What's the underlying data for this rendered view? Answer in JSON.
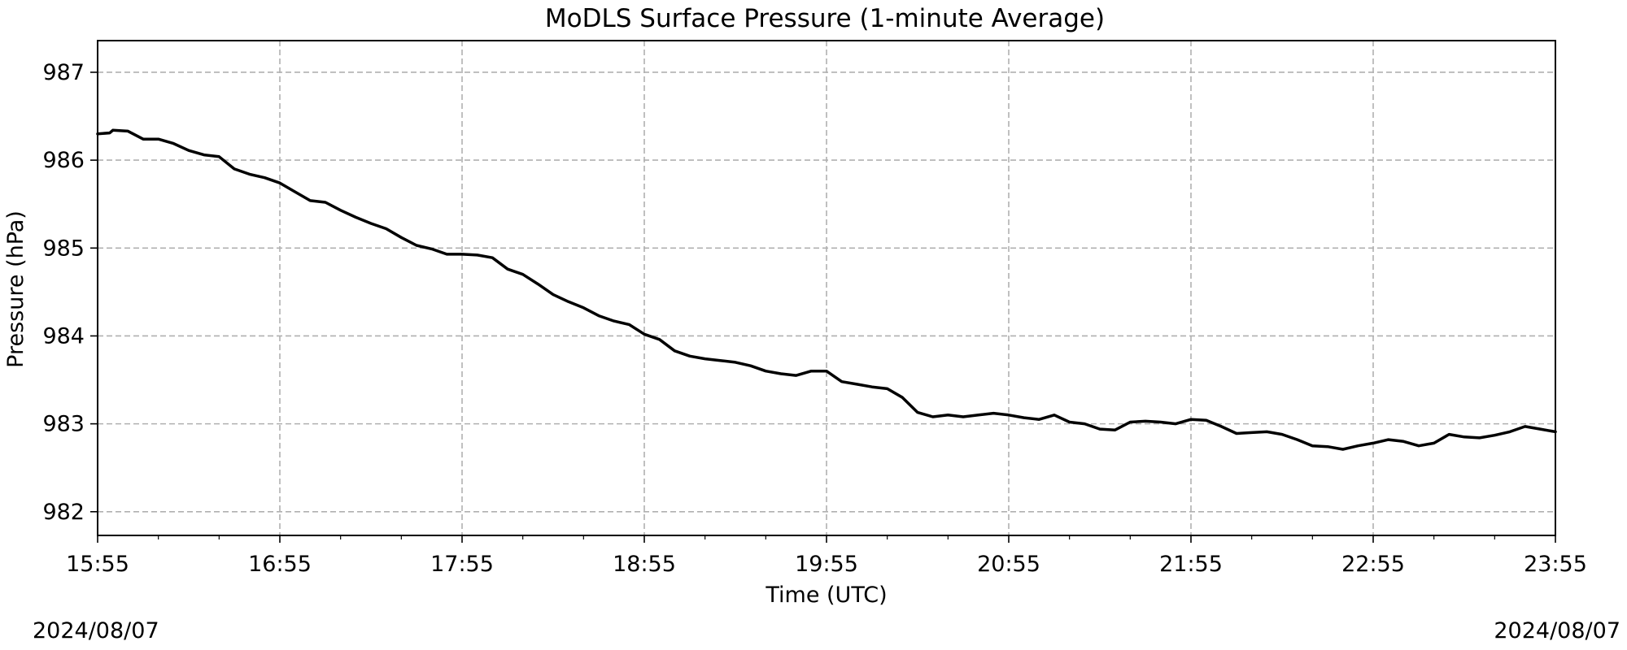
{
  "chart_data": {
    "type": "line",
    "title": "MoDLS Surface Pressure (1-minute Average)",
    "xlabel": "Time (UTC)",
    "ylabel": "Pressure (hPa)",
    "xlim": [
      "15:55",
      "23:55"
    ],
    "ylim": [
      981.73,
      987.36
    ],
    "x_ticks": [
      "15:55",
      "16:55",
      "17:55",
      "18:55",
      "19:55",
      "20:55",
      "21:55",
      "22:55",
      "23:55"
    ],
    "y_ticks": [
      982,
      983,
      984,
      985,
      986,
      987
    ],
    "grid": true,
    "date_left": "2024/08/07",
    "date_right": "2024/08/07",
    "line_color": "#000000",
    "series": [
      {
        "x": [
          "15:55",
          "15:59",
          "16:00",
          "16:05",
          "16:10",
          "16:15",
          "16:20",
          "16:25",
          "16:30",
          "16:35",
          "16:40",
          "16:45",
          "16:50",
          "16:55",
          "17:00",
          "17:05",
          "17:10",
          "17:15",
          "17:20",
          "17:25",
          "17:30",
          "17:35",
          "17:40",
          "17:45",
          "17:50",
          "17:55",
          "18:00",
          "18:05",
          "18:10",
          "18:15",
          "18:20",
          "18:25",
          "18:30",
          "18:35",
          "18:40",
          "18:45",
          "18:50",
          "18:55",
          "19:00",
          "19:05",
          "19:10",
          "19:15",
          "19:20",
          "19:25",
          "19:30",
          "19:35",
          "19:40",
          "19:45",
          "19:50",
          "19:55",
          "20:00",
          "20:05",
          "20:10",
          "20:15",
          "20:20",
          "20:25",
          "20:30",
          "20:35",
          "20:40",
          "20:45",
          "20:50",
          "20:55",
          "21:00",
          "21:05",
          "21:10",
          "21:15",
          "21:20",
          "21:25",
          "21:30",
          "21:35",
          "21:40",
          "21:45",
          "21:50",
          "21:55",
          "22:00",
          "22:05",
          "22:10",
          "22:15",
          "22:20",
          "22:25",
          "22:30",
          "22:35",
          "22:40",
          "22:45",
          "22:50",
          "22:55",
          "23:00",
          "23:05",
          "23:10",
          "23:15",
          "23:20",
          "23:25",
          "23:30",
          "23:35",
          "23:40",
          "23:45",
          "23:50",
          "23:55"
        ],
        "y": [
          986.3,
          986.31,
          986.34,
          986.33,
          986.24,
          986.24,
          986.19,
          986.11,
          986.06,
          986.04,
          985.9,
          985.84,
          985.8,
          985.74,
          985.64,
          985.54,
          985.52,
          985.43,
          985.35,
          985.28,
          985.22,
          985.12,
          985.03,
          984.99,
          984.93,
          984.93,
          984.92,
          984.89,
          984.76,
          984.7,
          984.59,
          984.47,
          984.39,
          984.32,
          984.23,
          984.17,
          984.13,
          984.02,
          983.96,
          983.83,
          983.77,
          983.74,
          983.72,
          983.7,
          983.66,
          983.6,
          983.57,
          983.55,
          983.6,
          983.6,
          983.48,
          983.45,
          983.42,
          983.4,
          983.3,
          983.13,
          983.08,
          983.1,
          983.08,
          983.1,
          983.12,
          983.1,
          983.07,
          983.05,
          983.1,
          983.02,
          983.0,
          982.94,
          982.93,
          983.02,
          983.03,
          983.02,
          983.0,
          983.05,
          983.04,
          982.97,
          982.89,
          982.9,
          982.91,
          982.88,
          982.82,
          982.75,
          982.74,
          982.71,
          982.75,
          982.78,
          982.82,
          982.8,
          982.75,
          982.78,
          982.88,
          982.85,
          982.84,
          982.87,
          982.91,
          982.97,
          982.94,
          982.91
        ]
      }
    ]
  }
}
